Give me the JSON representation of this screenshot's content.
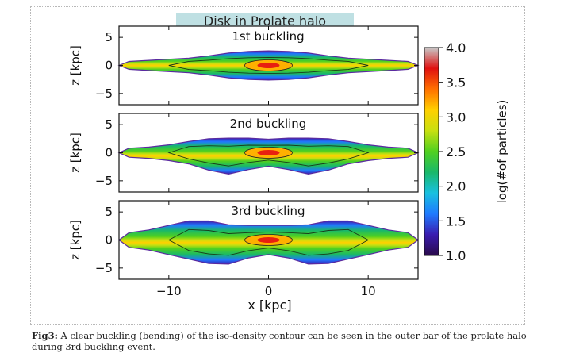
{
  "figure": {
    "title": "Disk in Prolate halo",
    "caption_label": "Fig3:",
    "caption_text": "A clear buckling (bending) of the iso-density contour can be seen in the outer bar of the prolate halo during 3rd buckling event."
  },
  "chart_data": [
    {
      "type": "heatmap",
      "title": "1st buckling",
      "ylabel": "z [kpc]",
      "xlim": [
        -15,
        15
      ],
      "ylim": [
        -7,
        7
      ],
      "yticks": [
        5,
        0,
        -5
      ],
      "x": [
        -14,
        -12,
        -10,
        -8,
        -6,
        -4,
        -2,
        0,
        2,
        4,
        6,
        8,
        10,
        12,
        14
      ],
      "half_thickness_kpc": [
        0.7,
        0.9,
        1.1,
        1.3,
        1.7,
        2.2,
        2.5,
        2.6,
        2.5,
        2.2,
        1.7,
        1.3,
        1.1,
        0.9,
        0.7
      ],
      "midplane_z_kpc": [
        0,
        0,
        0,
        0,
        0,
        0,
        0,
        0,
        0,
        0,
        0,
        0,
        0,
        0,
        0
      ]
    },
    {
      "type": "heatmap",
      "title": "2nd buckling",
      "ylabel": "z [kpc]",
      "xlim": [
        -15,
        15
      ],
      "ylim": [
        -7,
        7
      ],
      "yticks": [
        5,
        0,
        -5
      ],
      "x": [
        -14,
        -12,
        -10,
        -8,
        -6,
        -4,
        -2,
        0,
        2,
        4,
        6,
        8,
        10,
        12,
        14
      ],
      "half_thickness_kpc": [
        0.8,
        1.0,
        1.4,
        2.0,
        2.8,
        3.2,
        2.8,
        2.4,
        2.8,
        3.2,
        2.8,
        2.0,
        1.4,
        1.0,
        0.8
      ],
      "midplane_z_kpc": [
        0,
        0,
        0,
        0,
        -0.3,
        -0.6,
        -0.2,
        0,
        -0.2,
        -0.6,
        -0.3,
        0,
        0,
        0,
        0
      ]
    },
    {
      "type": "heatmap",
      "title": "3rd buckling",
      "ylabel": "z [kpc]",
      "xlabel": "x [kpc]",
      "xlim": [
        -15,
        15
      ],
      "ylim": [
        -7,
        7
      ],
      "yticks": [
        5,
        0,
        -5
      ],
      "xticks": [
        -10,
        0,
        10
      ],
      "x": [
        -14,
        -12,
        -10,
        -8,
        -6,
        -4,
        -2,
        0,
        2,
        4,
        6,
        8,
        10,
        12,
        14
      ],
      "half_thickness_kpc": [
        1.3,
        1.8,
        2.6,
        3.4,
        3.8,
        3.5,
        2.9,
        2.6,
        2.9,
        3.5,
        3.8,
        3.4,
        2.6,
        1.8,
        1.3
      ],
      "midplane_z_kpc": [
        0,
        0,
        0,
        0,
        -0.4,
        -0.8,
        -0.3,
        0,
        -0.3,
        -0.8,
        -0.4,
        0,
        0,
        0,
        0
      ]
    }
  ],
  "colorbar": {
    "label": "log(#of particles)",
    "ticks": [
      4.0,
      3.5,
      3.0,
      2.5,
      2.0,
      1.5,
      1.0
    ],
    "range": [
      1.0,
      4.0
    ],
    "colormap": [
      "#2a0a4a",
      "#3a1cb0",
      "#1f7aff",
      "#18c0e0",
      "#19b86a",
      "#50d020",
      "#c8e010",
      "#ffd000",
      "#ff7000",
      "#e01010",
      "#c8c8c8"
    ]
  }
}
